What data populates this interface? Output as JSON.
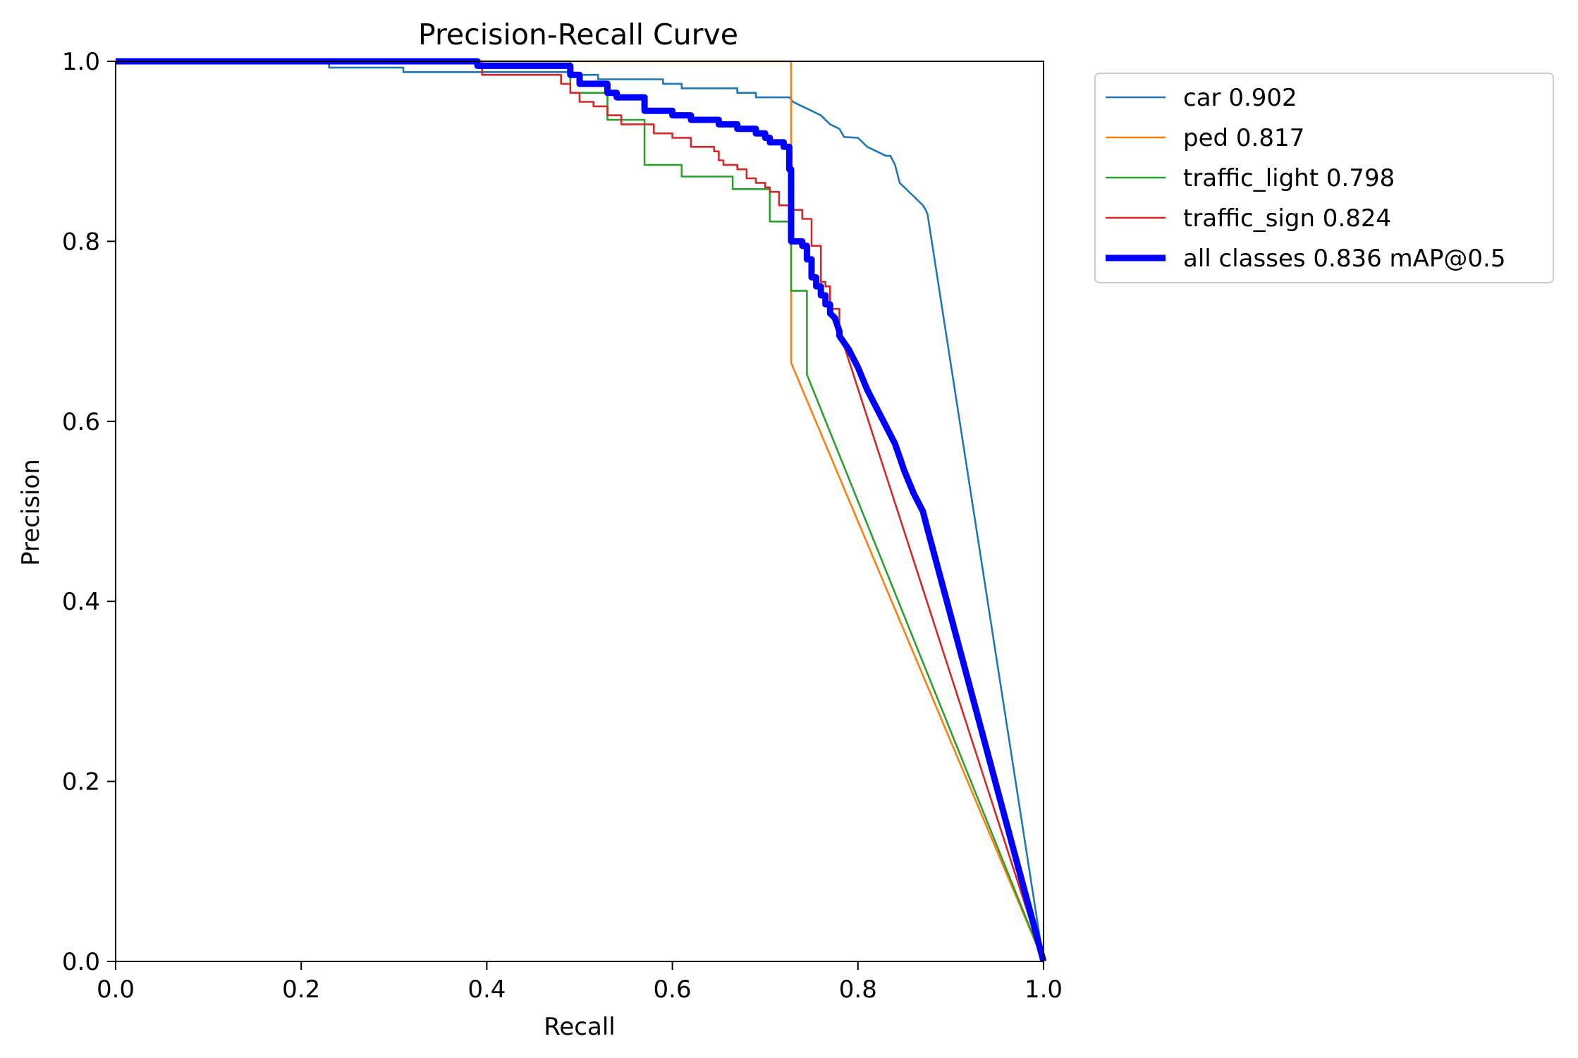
{
  "chart_data": {
    "type": "line",
    "title": "Precision-Recall Curve",
    "xlabel": "Recall",
    "ylabel": "Precision",
    "xlim": [
      0,
      1
    ],
    "ylim": [
      0,
      1
    ],
    "x_ticks": [
      0.0,
      0.2,
      0.4,
      0.6,
      0.8,
      1.0
    ],
    "y_ticks": [
      0.0,
      0.2,
      0.4,
      0.6,
      0.8,
      1.0
    ],
    "x_tick_labels": [
      "0.0",
      "0.2",
      "0.4",
      "0.6",
      "0.8",
      "1.0"
    ],
    "y_tick_labels": [
      "0.0",
      "0.2",
      "0.4",
      "0.6",
      "0.8",
      "1.0"
    ],
    "grid": false,
    "legend_position": "outside top-right",
    "series": [
      {
        "name": "car",
        "legend_label": "car 0.902",
        "color": "#1f77b4",
        "emphasis": "normal",
        "x": [
          0.0,
          0.23,
          0.23,
          0.31,
          0.31,
          0.49,
          0.49,
          0.52,
          0.52,
          0.59,
          0.59,
          0.61,
          0.61,
          0.67,
          0.67,
          0.69,
          0.69,
          0.726,
          0.73,
          0.74,
          0.75,
          0.76,
          0.77,
          0.78,
          0.785,
          0.8,
          0.81,
          0.82,
          0.83,
          0.835,
          0.84,
          0.845,
          0.86,
          0.87,
          0.873,
          0.875,
          1.0
        ],
        "y": [
          0.998,
          0.998,
          0.993,
          0.993,
          0.988,
          0.988,
          0.985,
          0.985,
          0.98,
          0.98,
          0.975,
          0.975,
          0.97,
          0.97,
          0.965,
          0.965,
          0.96,
          0.96,
          0.955,
          0.95,
          0.945,
          0.94,
          0.93,
          0.925,
          0.916,
          0.915,
          0.905,
          0.9,
          0.895,
          0.895,
          0.885,
          0.865,
          0.85,
          0.84,
          0.835,
          0.83,
          0.0
        ]
      },
      {
        "name": "ped",
        "legend_label": "ped 0.817",
        "color": "#ff7f0e",
        "emphasis": "normal",
        "x": [
          0.0,
          0.727,
          0.727,
          0.728,
          0.728,
          1.0
        ],
        "y": [
          1.0,
          1.0,
          1.0,
          1.0,
          0.665,
          0.0
        ]
      },
      {
        "name": "traffic_light",
        "legend_label": "traffic_light 0.798",
        "color": "#2ca02c",
        "emphasis": "normal",
        "x": [
          0.0,
          0.49,
          0.49,
          0.53,
          0.53,
          0.57,
          0.57,
          0.61,
          0.61,
          0.665,
          0.665,
          0.705,
          0.705,
          0.726,
          0.726,
          0.728,
          0.728,
          0.745,
          0.745,
          1.0
        ],
        "y": [
          1.0,
          1.0,
          0.965,
          0.965,
          0.935,
          0.935,
          0.885,
          0.885,
          0.872,
          0.872,
          0.858,
          0.858,
          0.822,
          0.822,
          0.8,
          0.8,
          0.745,
          0.745,
          0.652,
          0.0
        ]
      },
      {
        "name": "traffic_sign",
        "legend_label": "traffic_sign 0.824",
        "color": "#d62728",
        "emphasis": "normal",
        "x": [
          0.0,
          0.395,
          0.395,
          0.48,
          0.48,
          0.49,
          0.49,
          0.5,
          0.5,
          0.515,
          0.515,
          0.53,
          0.53,
          0.545,
          0.545,
          0.58,
          0.58,
          0.6,
          0.6,
          0.62,
          0.62,
          0.645,
          0.645,
          0.65,
          0.65,
          0.655,
          0.655,
          0.67,
          0.67,
          0.68,
          0.68,
          0.69,
          0.69,
          0.7,
          0.7,
          0.705,
          0.705,
          0.715,
          0.715,
          0.73,
          0.73,
          0.74,
          0.74,
          0.75,
          0.75,
          0.76,
          0.76,
          0.765,
          0.765,
          0.77,
          0.77,
          0.78,
          0.78,
          1.0
        ],
        "y": [
          1.0,
          1.0,
          0.985,
          0.985,
          0.975,
          0.975,
          0.965,
          0.965,
          0.955,
          0.955,
          0.95,
          0.95,
          0.94,
          0.94,
          0.93,
          0.93,
          0.92,
          0.92,
          0.915,
          0.915,
          0.905,
          0.905,
          0.9,
          0.9,
          0.89,
          0.89,
          0.885,
          0.885,
          0.88,
          0.88,
          0.87,
          0.87,
          0.865,
          0.865,
          0.86,
          0.86,
          0.855,
          0.855,
          0.84,
          0.84,
          0.835,
          0.835,
          0.825,
          0.825,
          0.795,
          0.795,
          0.755,
          0.755,
          0.75,
          0.75,
          0.725,
          0.725,
          0.7,
          0.0
        ]
      },
      {
        "name": "all classes",
        "legend_label": "all classes 0.836 mAP@0.5",
        "color": "#0000ff",
        "emphasis": "bold",
        "x": [
          0.0,
          0.39,
          0.39,
          0.49,
          0.49,
          0.5,
          0.5,
          0.53,
          0.53,
          0.54,
          0.54,
          0.57,
          0.57,
          0.6,
          0.6,
          0.62,
          0.62,
          0.65,
          0.65,
          0.67,
          0.67,
          0.69,
          0.69,
          0.7,
          0.7,
          0.705,
          0.705,
          0.72,
          0.72,
          0.726,
          0.726,
          0.728,
          0.728,
          0.74,
          0.74,
          0.745,
          0.745,
          0.75,
          0.75,
          0.755,
          0.755,
          0.76,
          0.76,
          0.765,
          0.765,
          0.77,
          0.77,
          0.775,
          0.78,
          0.78,
          0.79,
          0.8,
          0.81,
          0.82,
          0.83,
          0.84,
          0.845,
          0.85,
          0.86,
          0.87,
          0.875,
          1.0
        ],
        "y": [
          1.0,
          1.0,
          0.995,
          0.995,
          0.985,
          0.985,
          0.975,
          0.975,
          0.965,
          0.965,
          0.96,
          0.96,
          0.945,
          0.945,
          0.94,
          0.94,
          0.935,
          0.935,
          0.93,
          0.93,
          0.925,
          0.925,
          0.92,
          0.92,
          0.915,
          0.915,
          0.91,
          0.91,
          0.905,
          0.905,
          0.88,
          0.88,
          0.8,
          0.8,
          0.795,
          0.795,
          0.78,
          0.78,
          0.76,
          0.76,
          0.75,
          0.75,
          0.74,
          0.74,
          0.73,
          0.73,
          0.72,
          0.715,
          0.7,
          0.695,
          0.68,
          0.66,
          0.635,
          0.615,
          0.595,
          0.575,
          0.56,
          0.545,
          0.52,
          0.5,
          0.48,
          0.0
        ]
      }
    ]
  }
}
